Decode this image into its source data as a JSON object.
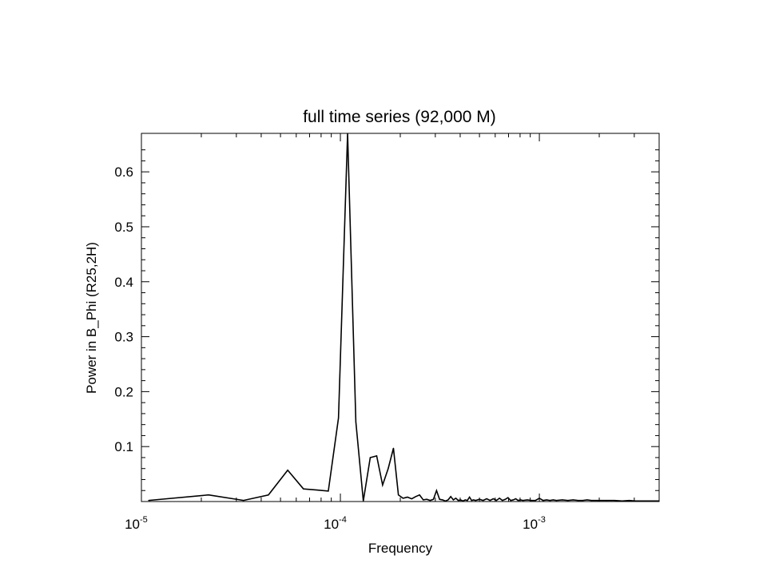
{
  "chart_data": {
    "type": "line",
    "title": "full time series (92,000 M)",
    "xlabel": "Frequency",
    "ylabel": "Power in B_Phi (R25,2H)",
    "x_scale": "log",
    "xlim": [
      1e-05,
      0.004
    ],
    "ylim": [
      0,
      0.67
    ],
    "grid": false,
    "x_ticks": [
      {
        "base": "10",
        "exp": "-5",
        "value": 1e-05
      },
      {
        "base": "10",
        "exp": "-4",
        "value": 0.0001
      },
      {
        "base": "10",
        "exp": "-3",
        "value": 0.001
      }
    ],
    "y_ticks": [
      "0.1",
      "0.2",
      "0.3",
      "0.4",
      "0.5",
      "0.6"
    ],
    "series": [
      {
        "color": "#000000",
        "points": [
          [
            1.087e-05,
            0.002
          ],
          [
            2.174e-05,
            0.012
          ],
          [
            3.261e-05,
            0.002
          ],
          [
            4.348e-05,
            0.012
          ],
          [
            5.435e-05,
            0.057
          ],
          [
            6.522e-05,
            0.023
          ],
          [
            7.609e-05,
            0.021
          ],
          [
            8.696e-05,
            0.019
          ],
          [
            9.783e-05,
            0.152
          ],
          [
            0.0001087,
            0.67
          ],
          [
            0.0001196,
            0.145
          ],
          [
            0.0001304,
            0.001
          ],
          [
            0.0001413,
            0.08
          ],
          [
            0.0001522,
            0.083
          ],
          [
            0.000163,
            0.03
          ],
          [
            0.0001739,
            0.06
          ],
          [
            0.0001848,
            0.097
          ],
          [
            0.0001957,
            0.012
          ],
          [
            0.0002065,
            0.006
          ],
          [
            0.0002174,
            0.008
          ],
          [
            0.0002283,
            0.005
          ],
          [
            0.0002391,
            0.009
          ],
          [
            0.00025,
            0.012
          ],
          [
            0.0002609,
            0.003
          ],
          [
            0.0002717,
            0.004
          ],
          [
            0.0002826,
            0.002
          ],
          [
            0.0002935,
            0.004
          ],
          [
            0.0003043,
            0.02
          ],
          [
            0.0003152,
            0.004
          ],
          [
            0.0003261,
            0.003
          ],
          [
            0.000337,
            0.001
          ],
          [
            0.0003478,
            0.003
          ],
          [
            0.0003587,
            0.009
          ],
          [
            0.0003696,
            0.003
          ],
          [
            0.0003804,
            0.006
          ],
          [
            0.0003913,
            0.002
          ],
          [
            0.0004022,
            0.003
          ],
          [
            0.000413,
            0.001
          ],
          [
            0.0004239,
            0.003
          ],
          [
            0.0004348,
            0.002
          ],
          [
            0.0004457,
            0.008
          ],
          [
            0.0004565,
            0.002
          ],
          [
            0.0004674,
            0.003
          ],
          [
            0.0004783,
            0.002
          ],
          [
            0.0005,
            0.004
          ],
          [
            0.0005217,
            0.002
          ],
          [
            0.0005435,
            0.005
          ],
          [
            0.0005652,
            0.002
          ],
          [
            0.000587,
            0.005
          ],
          [
            0.0006087,
            0.002
          ],
          [
            0.0006304,
            0.006
          ],
          [
            0.0006522,
            0.002
          ],
          [
            0.0006739,
            0.004
          ],
          [
            0.0006957,
            0.007
          ],
          [
            0.0007174,
            0.002
          ],
          [
            0.0007391,
            0.003
          ],
          [
            0.0007609,
            0.005
          ],
          [
            0.0007826,
            0.002
          ],
          [
            0.0008043,
            0.003
          ],
          [
            0.0008261,
            0.002
          ],
          [
            0.0008696,
            0.003
          ],
          [
            0.000913,
            0.002
          ],
          [
            0.0009565,
            0.002
          ],
          [
            0.001,
            0.006
          ],
          [
            0.0010435,
            0.002
          ],
          [
            0.001087,
            0.003
          ],
          [
            0.0011304,
            0.002
          ],
          [
            0.0011739,
            0.003
          ],
          [
            0.0012174,
            0.002
          ],
          [
            0.0013043,
            0.003
          ],
          [
            0.0013913,
            0.002
          ],
          [
            0.0014783,
            0.003
          ],
          [
            0.0015652,
            0.002
          ],
          [
            0.0016522,
            0.002
          ],
          [
            0.0017391,
            0.003
          ],
          [
            0.0018261,
            0.002
          ],
          [
            0.0019565,
            0.002
          ],
          [
            0.0021739,
            0.002
          ],
          [
            0.0023913,
            0.002
          ],
          [
            0.0026087,
            0.001
          ],
          [
            0.0028261,
            0.002
          ],
          [
            0.0030435,
            0.001
          ],
          [
            0.0032609,
            0.001
          ],
          [
            0.0034783,
            0.001
          ],
          [
            0.0036957,
            0.001
          ],
          [
            0.004,
            0.001
          ]
        ]
      }
    ]
  }
}
